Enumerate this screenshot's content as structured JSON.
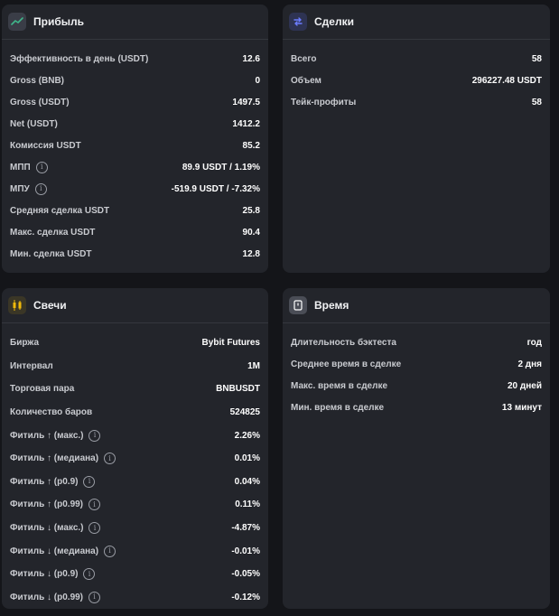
{
  "colors": {
    "background": "#141519",
    "card": "#23252b",
    "icon_profit": "#3fb68b",
    "icon_deals": "#6b7cff",
    "icon_candles": "#f0b90b",
    "icon_time": "#ffffff"
  },
  "profit": {
    "title": "Прибыль",
    "icon": "trend-line-icon",
    "rows": [
      {
        "label": "Эффективность в день (USDT)",
        "value": "12.6"
      },
      {
        "label": "Gross (BNB)",
        "value": "0"
      },
      {
        "label": "Gross (USDT)",
        "value": "1497.5"
      },
      {
        "label": "Net (USDT)",
        "value": "1412.2"
      },
      {
        "label": "Комиссия USDT",
        "value": "85.2"
      },
      {
        "label": "МПП",
        "value": "89.9 USDT / 1.19%",
        "info": true
      },
      {
        "label": "МПУ",
        "value": "-519.9 USDT / -7.32%",
        "info": true
      },
      {
        "label": "Средняя сделка USDT",
        "value": "25.8"
      },
      {
        "label": "Макс. сделка USDT",
        "value": "90.4"
      },
      {
        "label": "Мин. сделка USDT",
        "value": "12.8"
      }
    ]
  },
  "deals": {
    "title": "Сделки",
    "icon": "swap-arrows-icon",
    "rows": [
      {
        "label": "Всего",
        "value": "58"
      },
      {
        "label": "Объем",
        "value": "296227.48 USDT"
      },
      {
        "label": "Тейк-профиты",
        "value": "58"
      }
    ]
  },
  "candles": {
    "title": "Свечи",
    "icon": "candlestick-icon",
    "rows": [
      {
        "label": "Биржа",
        "value": "Bybit Futures"
      },
      {
        "label": "Интервал",
        "value": "1M"
      },
      {
        "label": "Торговая пара",
        "value": "BNBUSDT"
      },
      {
        "label": "Количество баров",
        "value": "524825"
      },
      {
        "label": "Фитиль ↑ (макс.)",
        "value": "2.26%",
        "info": true
      },
      {
        "label": "Фитиль ↑ (медиана)",
        "value": "0.01%",
        "info": true
      },
      {
        "label": "Фитиль ↑ (p0.9)",
        "value": "0.04%",
        "info": true
      },
      {
        "label": "Фитиль ↑ (p0.99)",
        "value": "0.11%",
        "info": true
      },
      {
        "label": "Фитиль ↓ (макс.)",
        "value": "-4.87%",
        "info": true
      },
      {
        "label": "Фитиль ↓ (медиана)",
        "value": "-0.01%",
        "info": true
      },
      {
        "label": "Фитиль ↓ (p0.9)",
        "value": "-0.05%",
        "info": true
      },
      {
        "label": "Фитиль ↓ (p0.99)",
        "value": "-0.12%",
        "info": true
      }
    ]
  },
  "time": {
    "title": "Время",
    "icon": "clock-icon",
    "rows": [
      {
        "label": "Длительность бэктеста",
        "value": "год"
      },
      {
        "label": "Среднее время в сделке",
        "value": "2 дня"
      },
      {
        "label": "Макс. время в сделке",
        "value": "20 дней"
      },
      {
        "label": "Мин. время в сделке",
        "value": "13 минут"
      }
    ]
  }
}
